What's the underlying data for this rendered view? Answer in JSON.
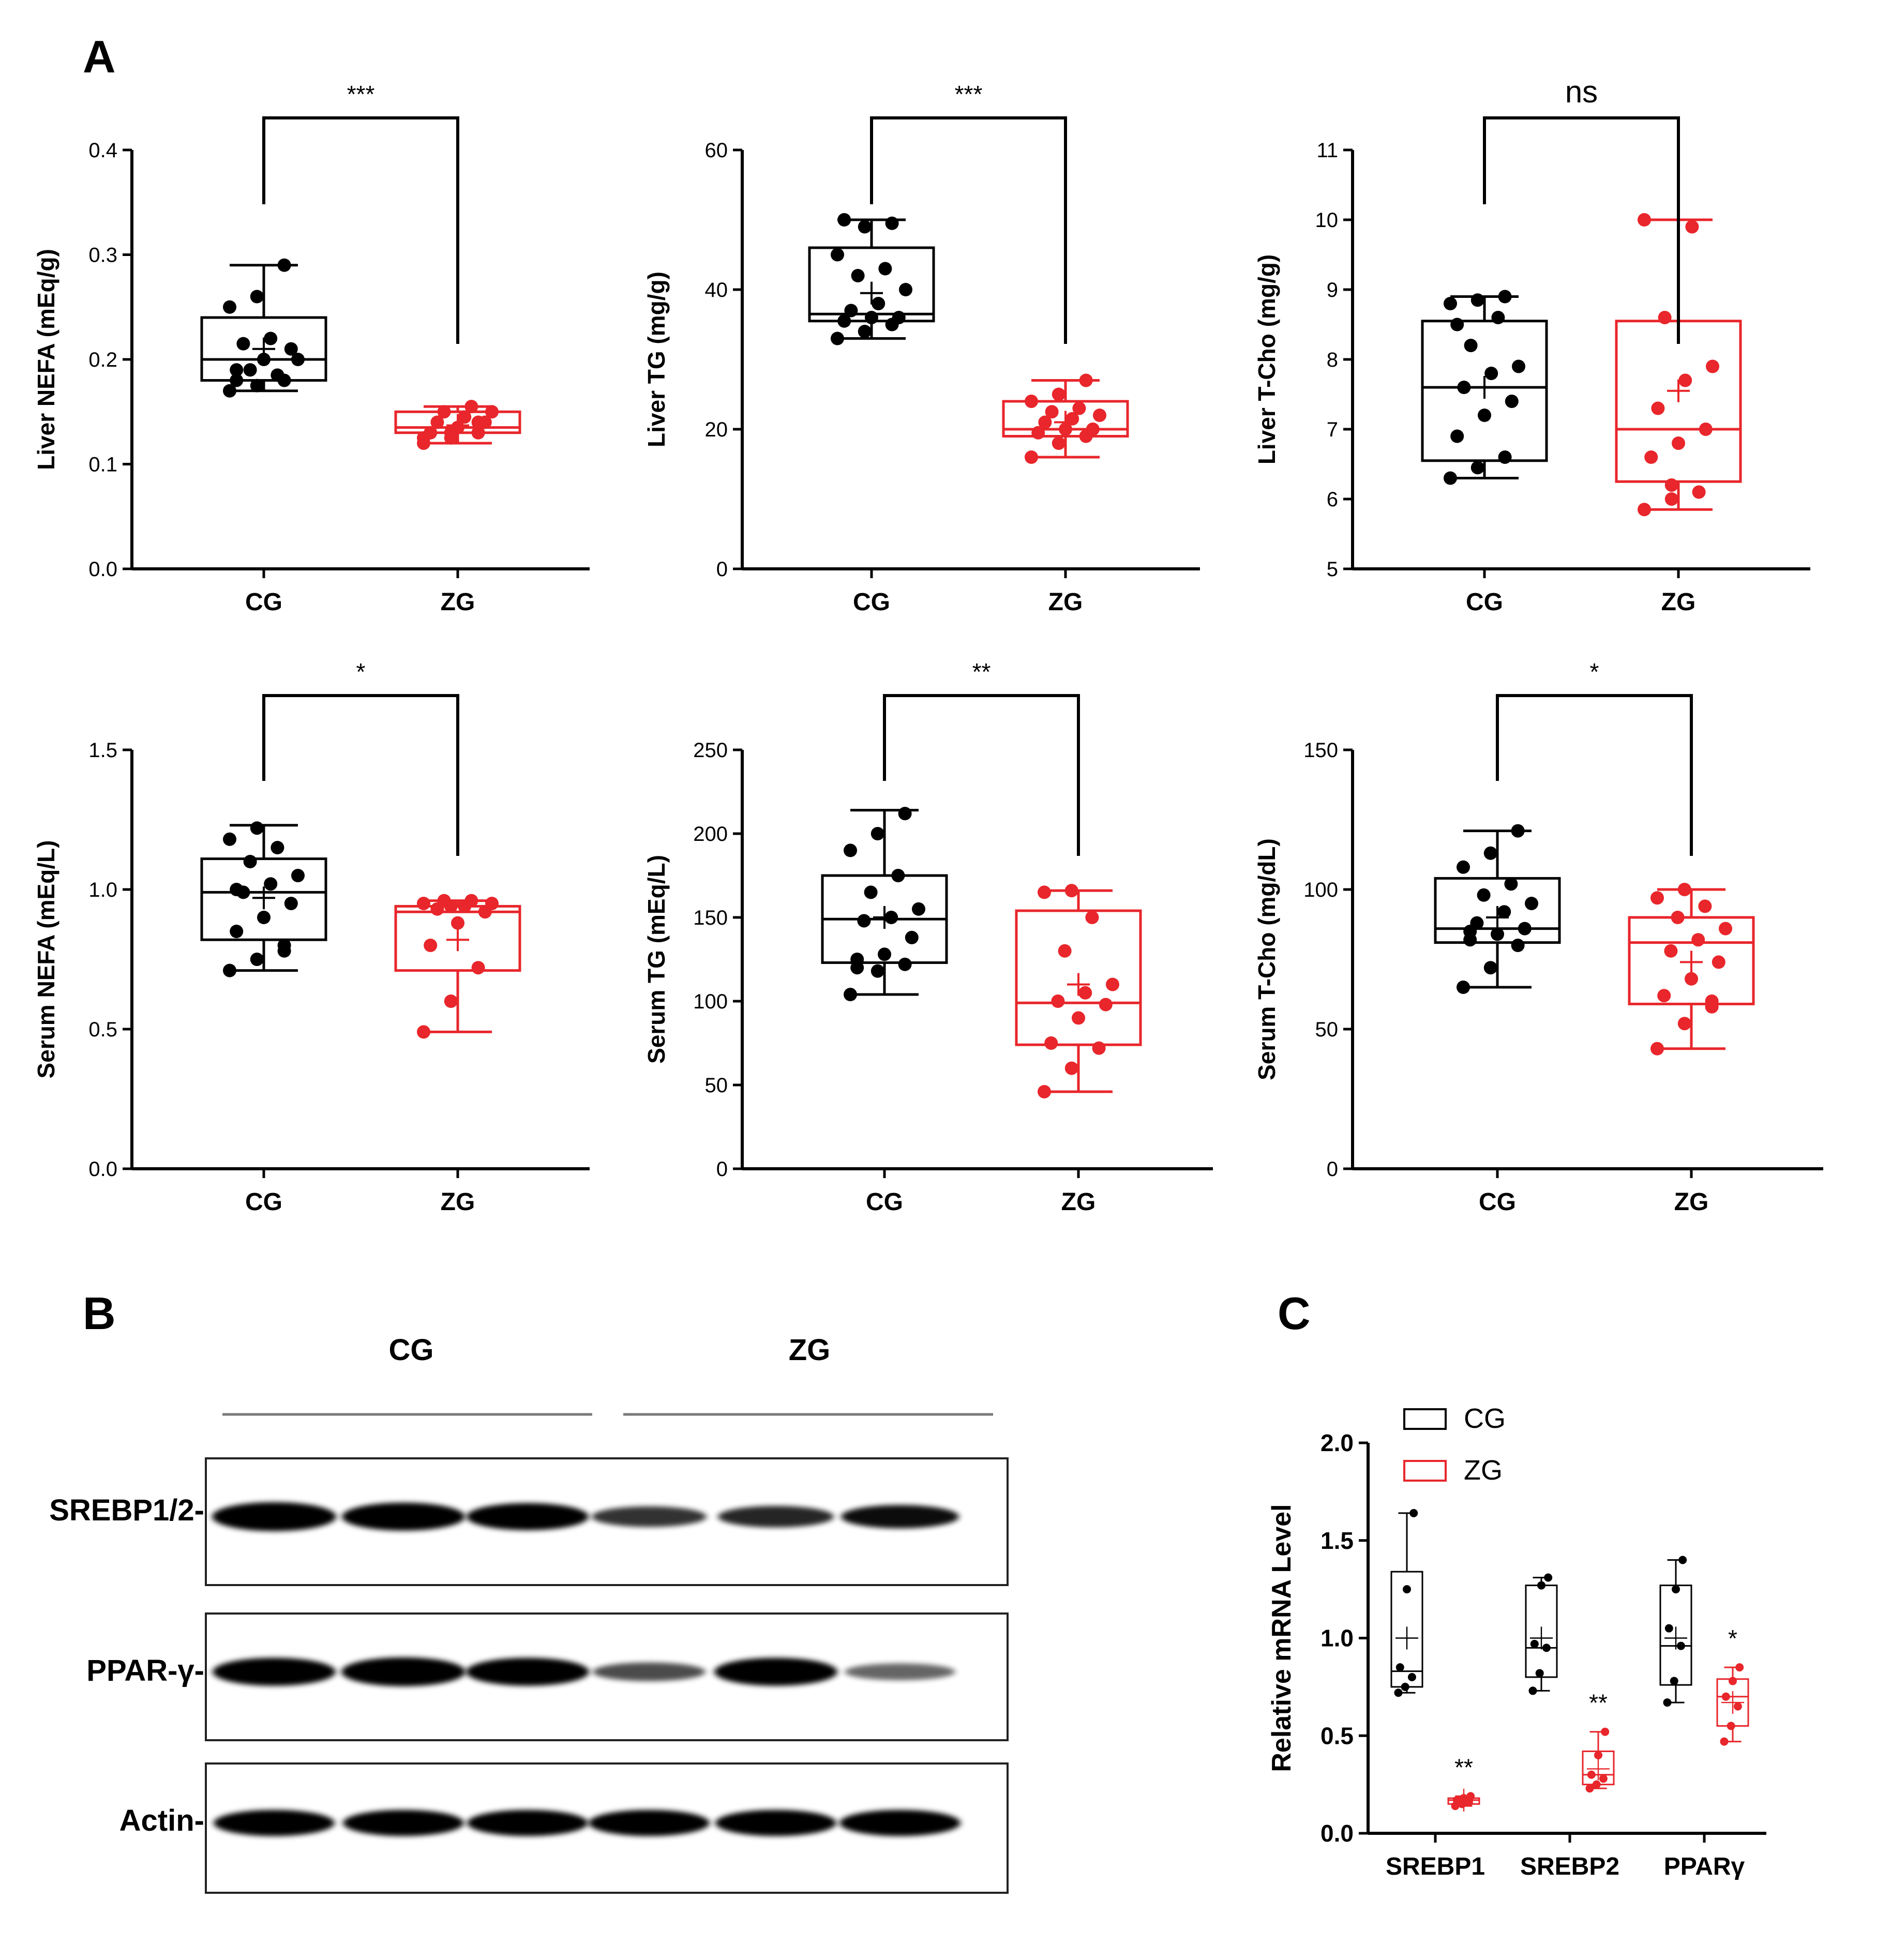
{
  "panels": {
    "a": "A",
    "b": "B",
    "c": "C"
  },
  "colors": {
    "cg": "#000000",
    "zg": "#e8262b"
  },
  "chart_data": [
    {
      "id": "liver-nefa",
      "type": "box",
      "ylabel": "Liver NEFA (mEq/g)",
      "ylim": [
        0,
        0.4
      ],
      "yticks": [
        "0.0",
        "0.1",
        "0.2",
        "0.3",
        "0.4"
      ],
      "categories": [
        "CG",
        "ZG"
      ],
      "significance": "***",
      "series": [
        {
          "name": "CG",
          "min": 0.17,
          "q1": 0.18,
          "median": 0.2,
          "q3": 0.24,
          "max": 0.29,
          "mean": 0.21,
          "points": [
            0.17,
            0.175,
            0.18,
            0.19,
            0.2,
            0.21,
            0.215,
            0.22,
            0.2,
            0.19,
            0.185,
            0.25,
            0.26,
            0.29,
            0.18
          ]
        },
        {
          "name": "ZG",
          "min": 0.12,
          "q1": 0.13,
          "median": 0.135,
          "q3": 0.15,
          "max": 0.155,
          "mean": 0.137,
          "points": [
            0.12,
            0.125,
            0.13,
            0.13,
            0.135,
            0.14,
            0.14,
            0.145,
            0.15,
            0.15,
            0.155,
            0.125,
            0.13,
            0.14
          ]
        }
      ]
    },
    {
      "id": "liver-tg",
      "type": "box",
      "ylabel": "Liver TG (mg/g)",
      "ylim": [
        0,
        60
      ],
      "yticks": [
        "0",
        "20",
        "40",
        "60"
      ],
      "categories": [
        "CG",
        "ZG"
      ],
      "significance": "***",
      "series": [
        {
          "name": "CG",
          "min": 33,
          "q1": 35.5,
          "median": 36.5,
          "q3": 46,
          "max": 50,
          "mean": 39.5,
          "points": [
            33,
            34,
            35,
            35.5,
            36,
            36,
            37,
            38,
            40,
            42,
            43,
            45,
            49,
            49.5,
            50
          ]
        },
        {
          "name": "ZG",
          "min": 16,
          "q1": 19,
          "median": 20,
          "q3": 24,
          "max": 27,
          "mean": 21,
          "points": [
            16,
            18,
            19,
            19.5,
            20,
            20,
            21,
            21.5,
            22,
            22.5,
            23,
            24,
            25,
            27
          ]
        }
      ]
    },
    {
      "id": "liver-tcho",
      "type": "box",
      "ylabel": "Liver T-Cho (mg/g)",
      "ylim": [
        5,
        11
      ],
      "yticks": [
        "5",
        "6",
        "7",
        "8",
        "9",
        "10",
        "11"
      ],
      "categories": [
        "CG",
        "ZG"
      ],
      "significance": "ns",
      "series": [
        {
          "name": "CG",
          "min": 6.3,
          "q1": 6.55,
          "median": 7.6,
          "q3": 8.55,
          "max": 8.9,
          "mean": 7.6,
          "points": [
            6.3,
            6.45,
            6.6,
            6.9,
            7.2,
            7.4,
            7.6,
            7.8,
            7.9,
            8.2,
            8.6,
            8.8,
            8.85,
            8.9,
            8.5
          ]
        },
        {
          "name": "ZG",
          "min": 5.85,
          "q1": 6.25,
          "median": 7.0,
          "q3": 8.55,
          "max": 10.0,
          "mean": 7.55,
          "points": [
            5.85,
            6.0,
            6.1,
            6.6,
            6.8,
            7.0,
            7.3,
            7.7,
            7.9,
            8.6,
            9.9,
            10.0,
            6.2
          ]
        }
      ]
    },
    {
      "id": "serum-nefa",
      "type": "box",
      "ylabel": "Serum NEFA (mEq/L)",
      "ylim": [
        0,
        1.5
      ],
      "yticks": [
        "0.0",
        "0.5",
        "1.0",
        "1.5"
      ],
      "categories": [
        "CG",
        "ZG"
      ],
      "significance": "*",
      "series": [
        {
          "name": "CG",
          "min": 0.71,
          "q1": 0.82,
          "median": 0.99,
          "q3": 1.11,
          "max": 1.23,
          "mean": 0.97,
          "points": [
            0.71,
            0.75,
            0.8,
            0.85,
            0.9,
            0.95,
            0.99,
            1.02,
            1.05,
            1.1,
            1.15,
            1.18,
            1.22,
            0.78,
            1.0
          ]
        },
        {
          "name": "ZG",
          "min": 0.49,
          "q1": 0.71,
          "median": 0.92,
          "q3": 0.94,
          "max": 0.96,
          "mean": 0.82,
          "points": [
            0.49,
            0.6,
            0.72,
            0.8,
            0.88,
            0.92,
            0.93,
            0.94,
            0.95,
            0.96,
            0.96,
            0.95,
            0.94
          ]
        }
      ]
    },
    {
      "id": "serum-tg",
      "type": "box",
      "ylabel": "Serum TG (mEq/L)",
      "ylim": [
        0,
        250
      ],
      "yticks": [
        "0",
        "50",
        "100",
        "150",
        "200",
        "250"
      ],
      "categories": [
        "CG",
        "ZG"
      ],
      "significance": "**",
      "series": [
        {
          "name": "CG",
          "min": 104,
          "q1": 123,
          "median": 149,
          "q3": 175,
          "max": 214,
          "mean": 150,
          "points": [
            104,
            118,
            122,
            125,
            128,
            138,
            148,
            150,
            155,
            165,
            175,
            190,
            200,
            212,
            120
          ]
        },
        {
          "name": "ZG",
          "min": 46,
          "q1": 74,
          "median": 99,
          "q3": 154,
          "max": 166,
          "mean": 110,
          "points": [
            46,
            60,
            72,
            75,
            90,
            98,
            100,
            105,
            110,
            130,
            150,
            165,
            166
          ]
        }
      ]
    },
    {
      "id": "serum-tcho",
      "type": "box",
      "ylabel": "Serum T-Cho (mg/dL)",
      "ylim": [
        0,
        150
      ],
      "yticks": [
        "0",
        "50",
        "100",
        "150"
      ],
      "categories": [
        "CG",
        "ZG"
      ],
      "significance": "*",
      "series": [
        {
          "name": "CG",
          "min": 65,
          "q1": 81,
          "median": 86,
          "q3": 104,
          "max": 121,
          "mean": 90,
          "points": [
            65,
            72,
            80,
            82,
            84,
            86,
            88,
            92,
            95,
            98,
            102,
            108,
            113,
            121,
            85
          ]
        },
        {
          "name": "ZG",
          "min": 43,
          "q1": 59,
          "median": 81,
          "q3": 90,
          "max": 100,
          "mean": 74,
          "points": [
            43,
            52,
            58,
            62,
            68,
            74,
            78,
            82,
            86,
            90,
            94,
            97,
            100,
            60
          ]
        }
      ]
    },
    {
      "id": "mrna",
      "type": "box",
      "ylabel": "Relative mRNA Level",
      "ylim": [
        0,
        2.0
      ],
      "yticks": [
        "0.0",
        "0.5",
        "1.0",
        "1.5",
        "2.0"
      ],
      "categories": [
        "SREBP1",
        "SREBP2",
        "PPARγ"
      ],
      "legend": [
        "CG",
        "ZG"
      ],
      "significance": [
        "**",
        "**",
        "*"
      ],
      "series": [
        {
          "name": "CG",
          "groups": [
            {
              "min": 0.72,
              "q1": 0.75,
              "median": 0.83,
              "q3": 1.34,
              "max": 1.64,
              "mean": 1.0,
              "points": [
                0.72,
                0.75,
                0.8,
                0.85,
                1.25,
                1.64
              ]
            },
            {
              "min": 0.73,
              "q1": 0.8,
              "median": 0.95,
              "q3": 1.27,
              "max": 1.31,
              "mean": 1.0,
              "points": [
                0.73,
                0.82,
                0.95,
                0.97,
                1.27,
                1.31
              ]
            },
            {
              "min": 0.67,
              "q1": 0.76,
              "median": 0.96,
              "q3": 1.27,
              "max": 1.4,
              "mean": 1.0,
              "points": [
                0.67,
                0.78,
                0.96,
                1.05,
                1.25,
                1.4
              ]
            }
          ]
        },
        {
          "name": "ZG",
          "groups": [
            {
              "min": 0.14,
              "q1": 0.15,
              "median": 0.17,
              "q3": 0.18,
              "max": 0.19,
              "mean": 0.17,
              "points": [
                0.14,
                0.15,
                0.16,
                0.17,
                0.18,
                0.19
              ]
            },
            {
              "min": 0.23,
              "q1": 0.25,
              "median": 0.3,
              "q3": 0.42,
              "max": 0.52,
              "mean": 0.33,
              "points": [
                0.23,
                0.25,
                0.28,
                0.3,
                0.4,
                0.52
              ]
            },
            {
              "min": 0.47,
              "q1": 0.55,
              "median": 0.7,
              "q3": 0.79,
              "max": 0.85,
              "mean": 0.67,
              "points": [
                0.47,
                0.55,
                0.65,
                0.7,
                0.78,
                0.85
              ]
            }
          ]
        }
      ]
    }
  ],
  "blot": {
    "groups": [
      "CG",
      "ZG"
    ],
    "rows": [
      {
        "label": "SREBP1/2-",
        "bands": [
          1.0,
          0.95,
          0.9,
          0.55,
          0.6,
          0.7
        ]
      },
      {
        "label": "PPAR-γ-",
        "bands": [
          0.95,
          1.0,
          0.95,
          0.45,
          0.95,
          0.35
        ]
      },
      {
        "label": "Actin-",
        "bands": [
          0.85,
          0.85,
          0.85,
          0.85,
          0.85,
          0.85
        ]
      }
    ]
  }
}
